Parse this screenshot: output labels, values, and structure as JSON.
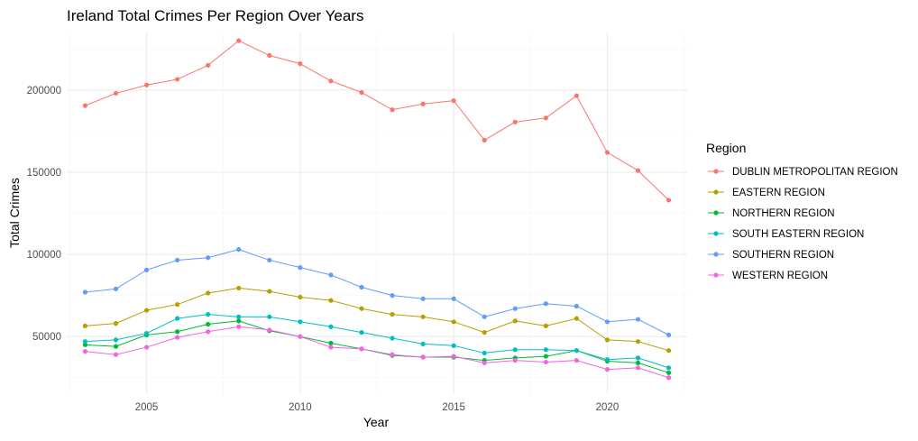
{
  "chart_data": {
    "type": "line",
    "title": "Ireland Total Crimes Per Region Over Years",
    "xlabel": "Year",
    "ylabel": "Total Crimes",
    "x": [
      2003,
      2004,
      2005,
      2006,
      2007,
      2008,
      2009,
      2010,
      2011,
      2012,
      2013,
      2014,
      2015,
      2016,
      2017,
      2018,
      2019,
      2020,
      2021,
      2022
    ],
    "xlim": [
      2002.4,
      2022.6
    ],
    "ylim": [
      15000,
      235000
    ],
    "x_ticks": [
      2005,
      2010,
      2015,
      2020
    ],
    "y_ticks": [
      50000,
      100000,
      150000,
      200000
    ],
    "grid": true,
    "legend": {
      "title": "Region",
      "placement": "right"
    },
    "series": [
      {
        "name": "DUBLIN METROPOLITAN REGION",
        "color": "#F8766D",
        "values": [
          190500,
          198000,
          203000,
          206500,
          215000,
          230000,
          221000,
          216000,
          205500,
          198500,
          188000,
          191500,
          193500,
          169500,
          180500,
          183000,
          196500,
          162000,
          151000,
          133000
        ]
      },
      {
        "name": "EASTERN REGION",
        "color": "#B79F00",
        "values": [
          56500,
          58000,
          66000,
          69500,
          76500,
          79500,
          77500,
          74000,
          72000,
          67000,
          63500,
          62000,
          59000,
          52500,
          59500,
          56500,
          61000,
          48000,
          47000,
          41500
        ]
      },
      {
        "name": "NORTHERN REGION",
        "color": "#00BA38",
        "values": [
          45000,
          44000,
          51000,
          53000,
          57500,
          59500,
          53500,
          50000,
          46000,
          42500,
          38500,
          37500,
          37500,
          35500,
          37000,
          38000,
          41500,
          35000,
          34000,
          28000
        ]
      },
      {
        "name": "SOUTH EASTERN REGION",
        "color": "#00BFC4",
        "values": [
          47000,
          48000,
          52000,
          61000,
          63500,
          62000,
          62000,
          59000,
          56000,
          52500,
          49000,
          45500,
          44500,
          40000,
          42000,
          42000,
          41500,
          36000,
          37000,
          31000
        ]
      },
      {
        "name": "SOUTHERN REGION",
        "color": "#619CFF",
        "values": [
          77000,
          79000,
          90500,
          96500,
          98000,
          103000,
          96500,
          92000,
          87500,
          80000,
          75000,
          73000,
          73000,
          62000,
          67000,
          70000,
          68500,
          59000,
          60500,
          51000
        ]
      },
      {
        "name": "WESTERN REGION",
        "color": "#F564E3",
        "values": [
          41000,
          39000,
          43500,
          49500,
          53000,
          56000,
          54000,
          50000,
          43500,
          42500,
          39000,
          37500,
          38000,
          34000,
          35500,
          34500,
          35500,
          30000,
          31000,
          25000
        ]
      }
    ]
  }
}
